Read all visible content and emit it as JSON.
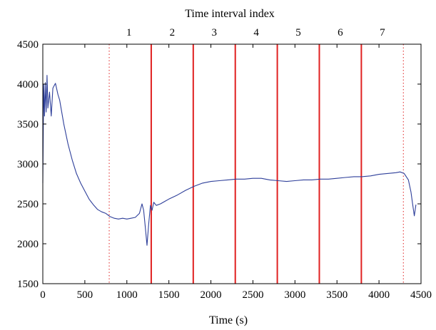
{
  "chart_data": {
    "type": "line",
    "title": "Time interval index",
    "xlabel": "Time (s)",
    "ylabel": "",
    "xlim": [
      0,
      4500
    ],
    "ylim": [
      1500,
      4500
    ],
    "x_ticks": [
      0,
      500,
      1000,
      1500,
      2000,
      2500,
      3000,
      3500,
      4000,
      4500
    ],
    "y_ticks": [
      1500,
      2000,
      2500,
      3000,
      3500,
      4000,
      4500
    ],
    "grid": false,
    "interval_labels": [
      "1",
      "2",
      "3",
      "4",
      "5",
      "6",
      "7"
    ],
    "interval_label_x": [
      1025,
      1540,
      2040,
      2540,
      3040,
      3540,
      4040
    ],
    "solid_boundaries": [
      1290,
      1790,
      2290,
      2790,
      3290,
      3790
    ],
    "dotted_boundaries": [
      790,
      4290
    ],
    "line_color": "#2e3f9a",
    "boundary_color": "#e02020",
    "series": [
      {
        "points": [
          [
            0,
            2760
          ],
          [
            10,
            4000
          ],
          [
            20,
            3600
          ],
          [
            30,
            4020
          ],
          [
            40,
            3650
          ],
          [
            50,
            4110
          ],
          [
            60,
            3700
          ],
          [
            80,
            3900
          ],
          [
            100,
            3600
          ],
          [
            120,
            3950
          ],
          [
            150,
            4010
          ],
          [
            180,
            3870
          ],
          [
            200,
            3800
          ],
          [
            250,
            3500
          ],
          [
            300,
            3250
          ],
          [
            350,
            3050
          ],
          [
            400,
            2880
          ],
          [
            450,
            2760
          ],
          [
            500,
            2660
          ],
          [
            550,
            2560
          ],
          [
            600,
            2490
          ],
          [
            650,
            2430
          ],
          [
            700,
            2400
          ],
          [
            750,
            2380
          ],
          [
            800,
            2340
          ],
          [
            850,
            2320
          ],
          [
            900,
            2310
          ],
          [
            950,
            2320
          ],
          [
            1000,
            2310
          ],
          [
            1050,
            2320
          ],
          [
            1100,
            2330
          ],
          [
            1150,
            2380
          ],
          [
            1180,
            2500
          ],
          [
            1200,
            2420
          ],
          [
            1220,
            2200
          ],
          [
            1240,
            1980
          ],
          [
            1260,
            2250
          ],
          [
            1280,
            2480
          ],
          [
            1300,
            2420
          ],
          [
            1320,
            2520
          ],
          [
            1350,
            2480
          ],
          [
            1400,
            2500
          ],
          [
            1450,
            2530
          ],
          [
            1500,
            2560
          ],
          [
            1600,
            2610
          ],
          [
            1700,
            2670
          ],
          [
            1800,
            2720
          ],
          [
            1900,
            2760
          ],
          [
            2000,
            2780
          ],
          [
            2100,
            2790
          ],
          [
            2200,
            2800
          ],
          [
            2300,
            2810
          ],
          [
            2400,
            2810
          ],
          [
            2500,
            2820
          ],
          [
            2600,
            2820
          ],
          [
            2700,
            2800
          ],
          [
            2800,
            2790
          ],
          [
            2900,
            2780
          ],
          [
            3000,
            2790
          ],
          [
            3100,
            2800
          ],
          [
            3200,
            2800
          ],
          [
            3300,
            2810
          ],
          [
            3400,
            2810
          ],
          [
            3500,
            2820
          ],
          [
            3600,
            2830
          ],
          [
            3700,
            2840
          ],
          [
            3800,
            2840
          ],
          [
            3900,
            2850
          ],
          [
            4000,
            2870
          ],
          [
            4100,
            2880
          ],
          [
            4200,
            2890
          ],
          [
            4250,
            2900
          ],
          [
            4300,
            2880
          ],
          [
            4350,
            2800
          ],
          [
            4380,
            2650
          ],
          [
            4400,
            2500
          ],
          [
            4420,
            2350
          ],
          [
            4440,
            2490
          ]
        ]
      }
    ]
  }
}
